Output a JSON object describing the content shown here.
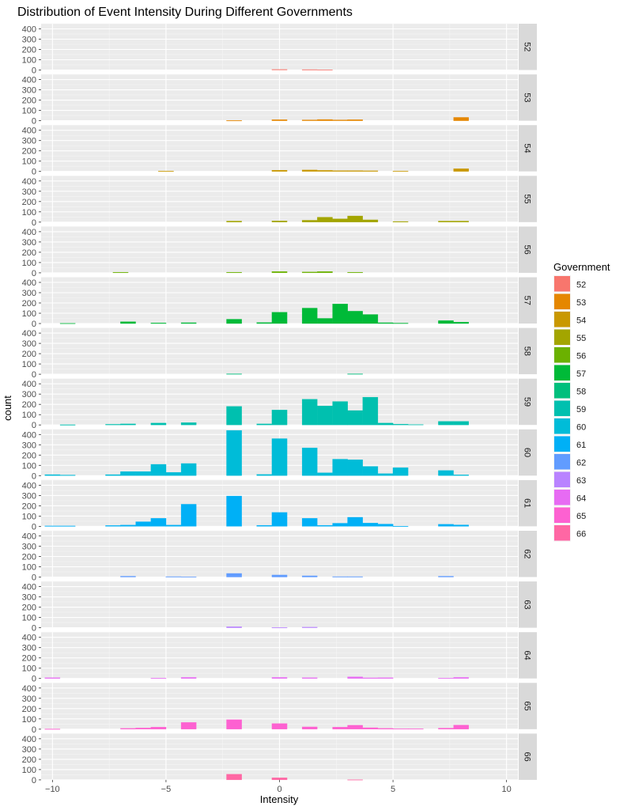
{
  "chart_data": {
    "type": "bar",
    "subtype": "faceted histogram",
    "title": "Distribution of Event Intensity During Different Governments",
    "xlabel": "Intensity",
    "ylabel": "count",
    "legend_title": "Government",
    "legend_position": "right",
    "facet_direction": "rows",
    "grid": true,
    "xlim": [
      -10.5,
      10.5
    ],
    "ylim": [
      0,
      450
    ],
    "x_ticks": [
      -10,
      -5,
      0,
      5,
      10
    ],
    "x_tick_labels": [
      "−10",
      "−5",
      "0",
      "5",
      "10"
    ],
    "y_ticks": [
      0,
      100,
      200,
      300,
      400
    ],
    "y_tick_labels": [
      "0",
      "100",
      "200",
      "300",
      "400"
    ],
    "bin_width": 0.667,
    "series": [
      {
        "name": "52",
        "color": "#F8766D",
        "bins": [
          [
            0,
            6
          ],
          [
            1.33,
            4
          ],
          [
            2,
            2
          ]
        ]
      },
      {
        "name": "53",
        "color": "#E58700",
        "bins": [
          [
            -2,
            2
          ],
          [
            0,
            10
          ],
          [
            1.33,
            8
          ],
          [
            2,
            12
          ],
          [
            2.67,
            8
          ],
          [
            3.33,
            10
          ],
          [
            8,
            32
          ]
        ]
      },
      {
        "name": "54",
        "color": "#C99800",
        "bins": [
          [
            -5,
            3
          ],
          [
            0,
            12
          ],
          [
            1.33,
            14
          ],
          [
            2,
            10
          ],
          [
            2.67,
            8
          ],
          [
            3.33,
            8
          ],
          [
            4,
            6
          ],
          [
            5.33,
            4
          ],
          [
            8,
            26
          ]
        ]
      },
      {
        "name": "55",
        "color": "#A3A500",
        "bins": [
          [
            -2,
            10
          ],
          [
            0,
            12
          ],
          [
            1.33,
            18
          ],
          [
            2,
            48
          ],
          [
            2.67,
            32
          ],
          [
            3.33,
            60
          ],
          [
            4,
            22
          ],
          [
            5.33,
            6
          ],
          [
            7.33,
            10
          ],
          [
            8,
            10
          ]
        ]
      },
      {
        "name": "56",
        "color": "#6BB100",
        "bins": [
          [
            -7,
            6
          ],
          [
            -2,
            6
          ],
          [
            0,
            12
          ],
          [
            1.33,
            8
          ],
          [
            2,
            12
          ],
          [
            3.33,
            6
          ]
        ]
      },
      {
        "name": "57",
        "color": "#00BA38",
        "bins": [
          [
            -9.33,
            2
          ],
          [
            -6.67,
            18
          ],
          [
            -5.33,
            6
          ],
          [
            -4,
            8
          ],
          [
            -2,
            42
          ],
          [
            -0.67,
            10
          ],
          [
            0,
            110
          ],
          [
            1.33,
            150
          ],
          [
            2,
            50
          ],
          [
            2.67,
            190
          ],
          [
            3.33,
            120
          ],
          [
            4,
            88
          ],
          [
            4.67,
            8
          ],
          [
            5.33,
            4
          ],
          [
            7.33,
            28
          ],
          [
            8,
            14
          ]
        ]
      },
      {
        "name": "58",
        "color": "#00BF7D",
        "bins": [
          [
            -2,
            4
          ],
          [
            3.33,
            4
          ]
        ]
      },
      {
        "name": "59",
        "color": "#00C0AF",
        "bins": [
          [
            -9.33,
            2
          ],
          [
            -7.33,
            6
          ],
          [
            -6.67,
            10
          ],
          [
            -5.33,
            18
          ],
          [
            -4,
            22
          ],
          [
            -2,
            180
          ],
          [
            -0.67,
            10
          ],
          [
            0,
            145
          ],
          [
            1.33,
            250
          ],
          [
            2,
            185
          ],
          [
            2.67,
            228
          ],
          [
            3.33,
            140
          ],
          [
            4,
            270
          ],
          [
            4.67,
            18
          ],
          [
            5.33,
            8
          ],
          [
            6,
            4
          ],
          [
            7.33,
            35
          ],
          [
            8,
            35
          ]
        ]
      },
      {
        "name": "60",
        "color": "#00BCD8",
        "bins": [
          [
            -10,
            10
          ],
          [
            -9.33,
            6
          ],
          [
            -7.33,
            10
          ],
          [
            -6.67,
            40
          ],
          [
            -6,
            40
          ],
          [
            -5.33,
            110
          ],
          [
            -4.67,
            32
          ],
          [
            -4,
            118
          ],
          [
            -2,
            440
          ],
          [
            -0.67,
            12
          ],
          [
            0,
            360
          ],
          [
            1.33,
            270
          ],
          [
            2,
            28
          ],
          [
            2.67,
            160
          ],
          [
            3.33,
            155
          ],
          [
            4,
            90
          ],
          [
            4.67,
            20
          ],
          [
            5.33,
            78
          ],
          [
            7.33,
            50
          ],
          [
            8,
            8
          ]
        ]
      },
      {
        "name": "61",
        "color": "#00B0F6",
        "bins": [
          [
            -10,
            4
          ],
          [
            -9.33,
            4
          ],
          [
            -7.33,
            8
          ],
          [
            -6.67,
            12
          ],
          [
            -6,
            45
          ],
          [
            -5.33,
            78
          ],
          [
            -4.67,
            12
          ],
          [
            -4,
            215
          ],
          [
            -2,
            295
          ],
          [
            -0.67,
            10
          ],
          [
            0,
            135
          ],
          [
            1.33,
            78
          ],
          [
            2,
            10
          ],
          [
            2.67,
            30
          ],
          [
            3.33,
            88
          ],
          [
            4,
            32
          ],
          [
            4.67,
            22
          ],
          [
            5.33,
            2
          ],
          [
            7.33,
            20
          ],
          [
            8,
            14
          ]
        ]
      },
      {
        "name": "62",
        "color": "#619CFF",
        "bins": [
          [
            -6.67,
            8
          ],
          [
            -4.67,
            4
          ],
          [
            -4,
            2
          ],
          [
            -2,
            35
          ],
          [
            0,
            20
          ],
          [
            1.33,
            12
          ],
          [
            2.67,
            4
          ],
          [
            3.33,
            4
          ],
          [
            7.33,
            8
          ]
        ]
      },
      {
        "name": "63",
        "color": "#B983FF",
        "bins": [
          [
            -2,
            10
          ],
          [
            0,
            2
          ],
          [
            1.33,
            6
          ]
        ]
      },
      {
        "name": "64",
        "color": "#E76BF3",
        "bins": [
          [
            -10,
            8
          ],
          [
            -5.33,
            4
          ],
          [
            -4,
            10
          ],
          [
            0,
            10
          ],
          [
            1.33,
            8
          ],
          [
            3.33,
            16
          ],
          [
            4,
            6
          ],
          [
            4.67,
            8
          ],
          [
            7.33,
            4
          ],
          [
            8,
            10
          ]
        ]
      },
      {
        "name": "65",
        "color": "#FD61D1",
        "bins": [
          [
            -10,
            2
          ],
          [
            -6.67,
            8
          ],
          [
            -6,
            12
          ],
          [
            -5.33,
            20
          ],
          [
            -4,
            65
          ],
          [
            -2,
            92
          ],
          [
            0,
            55
          ],
          [
            1.33,
            22
          ],
          [
            2.67,
            20
          ],
          [
            3.33,
            38
          ],
          [
            4,
            14
          ],
          [
            4.67,
            8
          ],
          [
            5.33,
            4
          ],
          [
            6,
            4
          ],
          [
            7.33,
            10
          ],
          [
            8,
            40
          ]
        ]
      },
      {
        "name": "66",
        "color": "#FF67A4",
        "bins": [
          [
            -2,
            55
          ],
          [
            0,
            20
          ],
          [
            3.33,
            2
          ]
        ]
      }
    ]
  }
}
